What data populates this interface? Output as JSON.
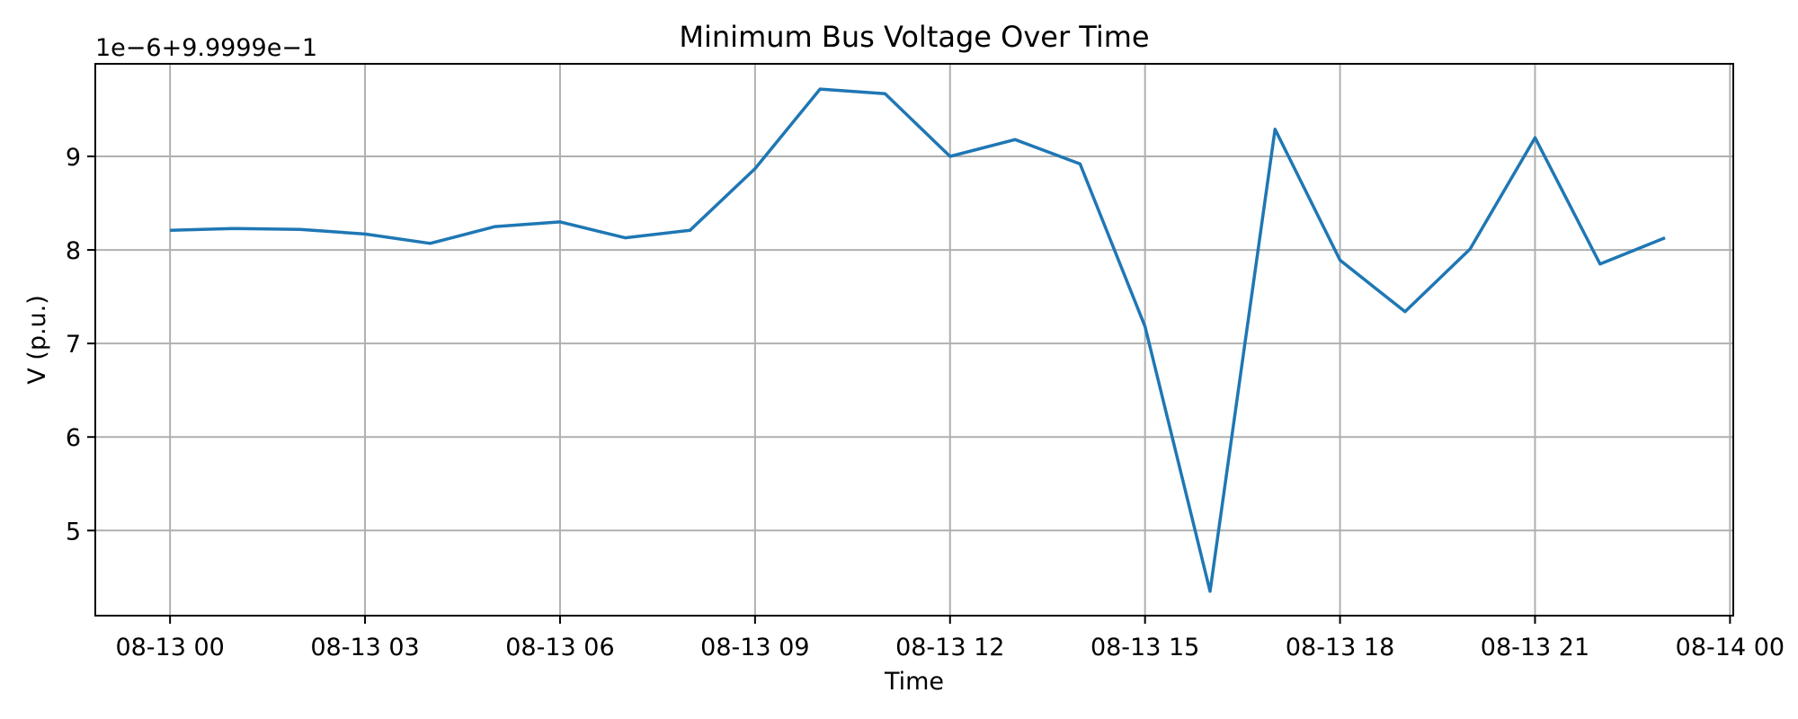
{
  "chart_data": {
    "type": "line",
    "title": "Minimum Bus Voltage Over Time",
    "xlabel": "Time",
    "ylabel": "V (p.u.)",
    "y_offset_label": "1e−6+9.9999e−1",
    "x_tick_labels": [
      "08-13 00",
      "08-13 03",
      "08-13 06",
      "08-13 09",
      "08-13 12",
      "08-13 15",
      "08-13 18",
      "08-13 21",
      "08-14 00"
    ],
    "y_tick_labels": [
      "5",
      "6",
      "7",
      "8",
      "9"
    ],
    "x_tick_hours": [
      0,
      3,
      6,
      9,
      12,
      15,
      18,
      21,
      24
    ],
    "y_ticks": [
      5,
      6,
      7,
      8,
      9
    ],
    "xlim_hours": [
      -1.15,
      24.05
    ],
    "ylim": [
      4.09,
      9.99
    ],
    "grid": true,
    "line_color": "#1f77b4",
    "grid_color": "#b0b0b0",
    "series": [
      {
        "x_hours": [
          0,
          1,
          2,
          3,
          4,
          5,
          6,
          7,
          8,
          9,
          10,
          11,
          12,
          13,
          14,
          15,
          16,
          17,
          18,
          19,
          20,
          21,
          22,
          23
        ],
        "values": [
          8.21,
          8.23,
          8.22,
          8.17,
          8.07,
          8.25,
          8.3,
          8.13,
          8.21,
          8.87,
          9.72,
          9.67,
          9.0,
          9.18,
          8.92,
          7.18,
          4.35,
          9.29,
          7.89,
          7.34,
          8.01,
          9.2,
          7.85,
          8.13
        ]
      }
    ]
  }
}
